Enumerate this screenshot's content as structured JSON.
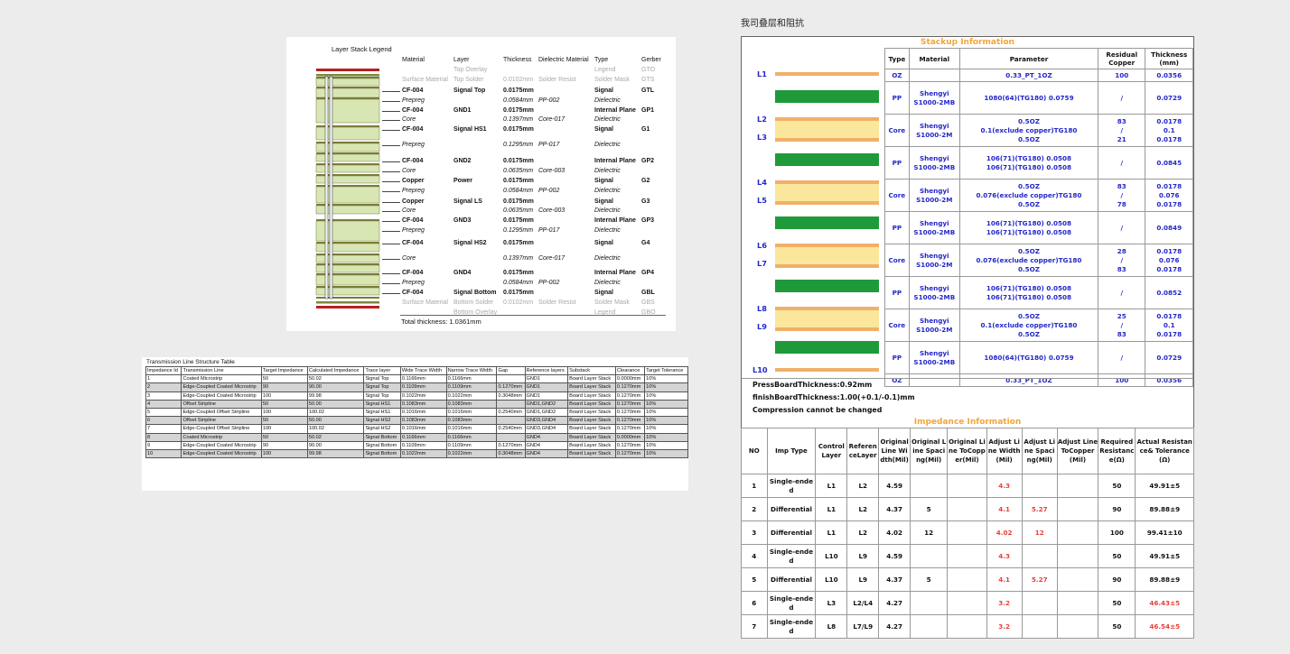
{
  "legend": {
    "title": "Layer Stack Legend",
    "headers": {
      "material": "Material",
      "layer": "Layer",
      "thickness": "Thickness",
      "dielectric": "Dielectric Material",
      "type": "Type",
      "gerber": "Gerber"
    },
    "rows": [
      {
        "style": "gray",
        "material": "",
        "layer": "Top Overlay",
        "thickness": "",
        "dielectric": "",
        "type": "Legend",
        "gerber": "GTO"
      },
      {
        "style": "gray",
        "material": "Surface Material",
        "layer": "Top Solder",
        "thickness": "0.0102mm",
        "dielectric": "Solder Resist",
        "type": "Solder Mask",
        "gerber": "GTS"
      },
      {
        "style": "bold",
        "material": "CF-004",
        "layer": "Signal Top",
        "thickness": "0.0175mm",
        "dielectric": "",
        "type": "Signal",
        "gerber": "GTL"
      },
      {
        "style": "ital",
        "material": "Prepreg",
        "layer": "",
        "thickness": "0.0584mm",
        "dielectric": "PP-002",
        "type": "Dielectric",
        "gerber": ""
      },
      {
        "style": "bold",
        "material": "CF-004",
        "layer": "GND1",
        "thickness": "0.0175mm",
        "dielectric": "",
        "type": "Internal Plane",
        "gerber": "GP1"
      },
      {
        "style": "ital",
        "material": "Core",
        "layer": "",
        "thickness": "0.1397mm",
        "dielectric": "Core-017",
        "type": "Dielectric",
        "gerber": ""
      },
      {
        "style": "bold",
        "material": "CF-004",
        "layer": "Signal HS1",
        "thickness": "0.0175mm",
        "dielectric": "",
        "type": "Signal",
        "gerber": "G1"
      },
      {
        "style": "ital",
        "material": "Prepreg",
        "layer": "",
        "thickness": "0.1295mm",
        "dielectric": "PP-017",
        "type": "Dielectric",
        "gerber": ""
      },
      {
        "style": "bold",
        "material": "CF-004",
        "layer": "GND2",
        "thickness": "0.0175mm",
        "dielectric": "",
        "type": "Internal Plane",
        "gerber": "GP2"
      },
      {
        "style": "ital",
        "material": "Core",
        "layer": "",
        "thickness": "0.0635mm",
        "dielectric": "Core-003",
        "type": "Dielectric",
        "gerber": ""
      },
      {
        "style": "bold",
        "material": "Copper",
        "layer": "Power",
        "thickness": "0.0175mm",
        "dielectric": "",
        "type": "Signal",
        "gerber": "G2"
      },
      {
        "style": "ital",
        "material": "Prepreg",
        "layer": "",
        "thickness": "0.0584mm",
        "dielectric": "PP-002",
        "type": "Dielectric",
        "gerber": ""
      },
      {
        "style": "bold",
        "material": "Copper",
        "layer": "Signal LS",
        "thickness": "0.0175mm",
        "dielectric": "",
        "type": "Signal",
        "gerber": "G3"
      },
      {
        "style": "ital",
        "material": "Core",
        "layer": "",
        "thickness": "0.0635mm",
        "dielectric": "Core-003",
        "type": "Dielectric",
        "gerber": ""
      },
      {
        "style": "bold",
        "material": "CF-004",
        "layer": "GND3",
        "thickness": "0.0175mm",
        "dielectric": "",
        "type": "Internal Plane",
        "gerber": "GP3"
      },
      {
        "style": "ital",
        "material": "Prepreg",
        "layer": "",
        "thickness": "0.1295mm",
        "dielectric": "PP-017",
        "type": "Dielectric",
        "gerber": ""
      },
      {
        "style": "bold",
        "material": "CF-004",
        "layer": "Signal HS2",
        "thickness": "0.0175mm",
        "dielectric": "",
        "type": "Signal",
        "gerber": "G4"
      },
      {
        "style": "ital",
        "material": "Core",
        "layer": "",
        "thickness": "0.1397mm",
        "dielectric": "Core-017",
        "type": "Dielectric",
        "gerber": ""
      },
      {
        "style": "bold",
        "material": "CF-004",
        "layer": "GND4",
        "thickness": "0.0175mm",
        "dielectric": "",
        "type": "Internal Plane",
        "gerber": "GP4"
      },
      {
        "style": "ital",
        "material": "Prepreg",
        "layer": "",
        "thickness": "0.0584mm",
        "dielectric": "PP-002",
        "type": "Dielectric",
        "gerber": ""
      },
      {
        "style": "bold",
        "material": "CF-004",
        "layer": "Signal Bottom",
        "thickness": "0.0175mm",
        "dielectric": "",
        "type": "Signal",
        "gerber": "GBL"
      },
      {
        "style": "gray",
        "material": "Surface Material",
        "layer": "Bottom Solder",
        "thickness": "0.0102mm",
        "dielectric": "Solder Resist",
        "type": "Solder Mask",
        "gerber": "GBS"
      },
      {
        "style": "gray",
        "material": "",
        "layer": "Bottom Overlay",
        "thickness": "",
        "dielectric": "",
        "type": "Legend",
        "gerber": "GBO"
      }
    ],
    "total": "Total thickness: 1.0361mm"
  },
  "tline": {
    "caption": "Transmission Line Structure Table",
    "headers": [
      "Impedance Id",
      "Transmission Line",
      "Target Impedance",
      "Calculated Impedance",
      "Trace layer",
      "Wide Trace Width",
      "Narrow Trace Width",
      "Gap",
      "Reference layers",
      "Substack",
      "Clearance",
      "Target Tolerance"
    ],
    "rows": [
      [
        "1",
        "Coated Microstrip",
        "50",
        "50.02",
        "Signal Top",
        "0.1166mm",
        "0.1166mm",
        "",
        "GND1",
        "Board Layer Stack",
        "0.0000mm",
        "10%"
      ],
      [
        "2",
        "Edge-Coupled Coated Microstrip",
        "90",
        "90.00",
        "Signal Top",
        "0.1109mm",
        "0.1109mm",
        "0.1270mm",
        "GND1",
        "Board Layer Stack",
        "0.1270mm",
        "10%"
      ],
      [
        "3",
        "Edge-Coupled Coated Microstrip",
        "100",
        "99.98",
        "Signal Top",
        "0.1022mm",
        "0.1022mm",
        "0.3048mm",
        "GND1",
        "Board Layer Stack",
        "0.1270mm",
        "10%"
      ],
      [
        "4",
        "Offset Stripline",
        "50",
        "50.00",
        "Signal HS1",
        "0.1083mm",
        "0.1083mm",
        "",
        "GND1,GND2",
        "Board Layer Stack",
        "0.1270mm",
        "10%"
      ],
      [
        "5",
        "Edge-Coupled Offset Stripline",
        "100",
        "100.02",
        "Signal HS1",
        "0.1016mm",
        "0.1016mm",
        "0.2540mm",
        "GND1,GND2",
        "Board Layer Stack",
        "0.1270mm",
        "10%"
      ],
      [
        "6",
        "Offset Stripline",
        "50",
        "50.00",
        "Signal HS2",
        "0.1083mm",
        "0.1083mm",
        "",
        "GND3,GND4",
        "Board Layer Stack",
        "0.1270mm",
        "10%"
      ],
      [
        "7",
        "Edge-Coupled Offset Stripline",
        "100",
        "100.02",
        "Signal HS2",
        "0.1016mm",
        "0.1016mm",
        "0.2540mm",
        "GND3,GND4",
        "Board Layer Stack",
        "0.1270mm",
        "10%"
      ],
      [
        "8",
        "Coated Microstrip",
        "50",
        "50.02",
        "Signal Bottom",
        "0.1166mm",
        "0.1166mm",
        "",
        "GND4",
        "Board Layer Stack",
        "0.0000mm",
        "10%"
      ],
      [
        "9",
        "Edge-Coupled Coated Microstrip",
        "90",
        "90.00",
        "Signal Bottom",
        "0.1109mm",
        "0.1109mm",
        "0.1270mm",
        "GND4",
        "Board Layer Stack",
        "0.1270mm",
        "10%"
      ],
      [
        "10",
        "Edge-Coupled Coated Microstrip",
        "100",
        "99.98",
        "Signal Bottom",
        "0.1022mm",
        "0.1022mm",
        "0.3048mm",
        "GND4",
        "Board Layer Stack",
        "0.1270mm",
        "10%"
      ]
    ]
  },
  "right": {
    "title": "我司叠层和阻抗",
    "stackup_banner": "Stackup Information",
    "stack_headers": [
      "Type",
      "Material",
      "Parameter",
      "Residual Copper",
      "Thickness (mm)"
    ],
    "stack_rows": [
      {
        "type": "OZ",
        "material": "",
        "parameter": "0.33_PT_1OZ",
        "residual": "100",
        "thickness": "0.0356"
      },
      {
        "type": "PP",
        "material": "Shengyi S1000-2MB",
        "parameter": "1080(64)(TG180) 0.0759",
        "residual": "/",
        "thickness": "0.0729"
      },
      {
        "type": "Core",
        "material": "Shengyi S1000-2M",
        "parameter": "0.5OZ\n0.1(exclude copper)TG180\n0.5OZ",
        "residual": "83\n/\n21",
        "thickness": "0.0178\n0.1\n0.0178"
      },
      {
        "type": "PP",
        "material": "Shengyi S1000-2MB",
        "parameter": "106(71)(TG180) 0.0508\n106(71)(TG180) 0.0508",
        "residual": "/",
        "thickness": "0.0845"
      },
      {
        "type": "Core",
        "material": "Shengyi S1000-2M",
        "parameter": "0.5OZ\n0.076(exclude copper)TG180\n0.5OZ",
        "residual": "83\n/\n78",
        "thickness": "0.0178\n0.076\n0.0178"
      },
      {
        "type": "PP",
        "material": "Shengyi S1000-2MB",
        "parameter": "106(71)(TG180) 0.0508\n106(71)(TG180) 0.0508",
        "residual": "/",
        "thickness": "0.0849"
      },
      {
        "type": "Core",
        "material": "Shengyi S1000-2M",
        "parameter": "0.5OZ\n0.076(exclude copper)TG180\n0.5OZ",
        "residual": "28\n/\n83",
        "thickness": "0.0178\n0.076\n0.0178"
      },
      {
        "type": "PP",
        "material": "Shengyi S1000-2MB",
        "parameter": "106(71)(TG180) 0.0508\n106(71)(TG180) 0.0508",
        "residual": "/",
        "thickness": "0.0852"
      },
      {
        "type": "Core",
        "material": "Shengyi S1000-2M",
        "parameter": "0.5OZ\n0.1(exclude copper)TG180\n0.5OZ",
        "residual": "25\n/\n83",
        "thickness": "0.0178\n0.1\n0.0178"
      },
      {
        "type": "PP",
        "material": "Shengyi S1000-2MB",
        "parameter": "1080(64)(TG180) 0.0759",
        "residual": "/",
        "thickness": "0.0729"
      },
      {
        "type": "OZ",
        "material": "",
        "parameter": "0.33_PT_1OZ",
        "residual": "100",
        "thickness": "0.0356"
      }
    ],
    "layer_labels": [
      "L1",
      "L2",
      "L3",
      "L4",
      "L5",
      "L6",
      "L7",
      "L8",
      "L9",
      "L10"
    ],
    "press": "PressBoardThickness:0.92mm",
    "finish": "finishBoardThickness:1.00(+0.1/-0.1)mm",
    "compression": "Compression cannot be changed",
    "impedance_banner": "Impedance Information",
    "imp_headers": [
      "NO",
      "Imp Type",
      "Control Layer",
      "ReferenceLayer",
      "Original Line Width(Mil)",
      "Original Line Spacing(Mil)",
      "Original Line ToCopper(Mil)",
      "Adjust Line Width(Mil)",
      "Adjust Line Spacing(Mil)",
      "Adjust Line ToCopper(Mil)",
      "Required Resistance(Ω)",
      "Actual Resistance& Tolerance (Ω)"
    ],
    "imp_rows": [
      {
        "no": "1",
        "type": "Single-ended",
        "ctrl": "L1",
        "ref": "L2",
        "ow": "4.59",
        "os": "",
        "oc": "",
        "aw": "4.3",
        "as": "",
        "ac": "",
        "req": "50",
        "act": "49.91±5",
        "act_red": false
      },
      {
        "no": "2",
        "type": "Differential",
        "ctrl": "L1",
        "ref": "L2",
        "ow": "4.37",
        "os": "5",
        "oc": "",
        "aw": "4.1",
        "as": "5.27",
        "ac": "",
        "req": "90",
        "act": "89.88±9",
        "act_red": false
      },
      {
        "no": "3",
        "type": "Differential",
        "ctrl": "L1",
        "ref": "L2",
        "ow": "4.02",
        "os": "12",
        "oc": "",
        "aw": "4.02",
        "as": "12",
        "ac": "",
        "req": "100",
        "act": "99.41±10",
        "act_red": false
      },
      {
        "no": "4",
        "type": "Single-ended",
        "ctrl": "L10",
        "ref": "L9",
        "ow": "4.59",
        "os": "",
        "oc": "",
        "aw": "4.3",
        "as": "",
        "ac": "",
        "req": "50",
        "act": "49.91±5",
        "act_red": false
      },
      {
        "no": "5",
        "type": "Differential",
        "ctrl": "L10",
        "ref": "L9",
        "ow": "4.37",
        "os": "5",
        "oc": "",
        "aw": "4.1",
        "as": "5.27",
        "ac": "",
        "req": "90",
        "act": "89.88±9",
        "act_red": false
      },
      {
        "no": "6",
        "type": "Single-ended",
        "ctrl": "L3",
        "ref": "L2/L4",
        "ow": "4.27",
        "os": "",
        "oc": "",
        "aw": "3.2",
        "as": "",
        "ac": "",
        "req": "50",
        "act": "46.43±5",
        "act_red": true
      },
      {
        "no": "7",
        "type": "Single-ended",
        "ctrl": "L8",
        "ref": "L7/L9",
        "ow": "4.27",
        "os": "",
        "oc": "",
        "aw": "3.2",
        "as": "",
        "ac": "",
        "req": "50",
        "act": "46.54±5",
        "act_red": true
      }
    ]
  }
}
